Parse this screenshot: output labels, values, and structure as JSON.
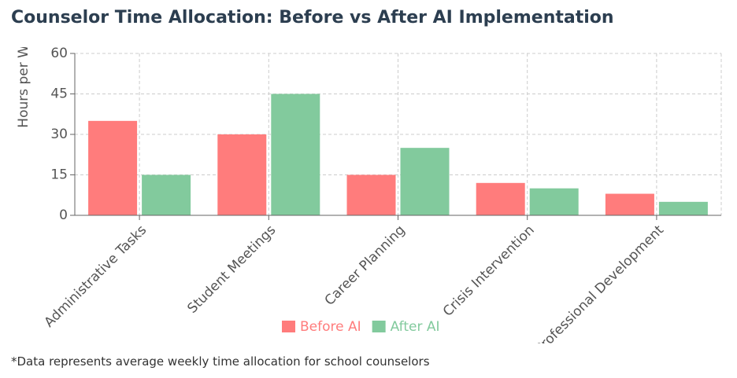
{
  "chart_data": {
    "type": "bar",
    "title": "Counselor Time Allocation: Before vs After AI Implementation",
    "y_label": "Hours per Week",
    "categories": [
      "Administrative Tasks",
      "Student Meetings",
      "Career Planning",
      "Crisis Intervention",
      "Professional Development"
    ],
    "series": [
      {
        "name": "Before AI",
        "color": "#ff7c7c",
        "values": [
          35,
          30,
          15,
          12,
          8
        ]
      },
      {
        "name": "After AI",
        "color": "#82ca9d",
        "values": [
          15,
          45,
          25,
          10,
          5
        ]
      }
    ],
    "ylim": [
      0,
      60
    ],
    "yticks": [
      0,
      15,
      30,
      45,
      60
    ],
    "grid": true,
    "footnote": "*Data represents average weekly time allocation for school counselors"
  }
}
